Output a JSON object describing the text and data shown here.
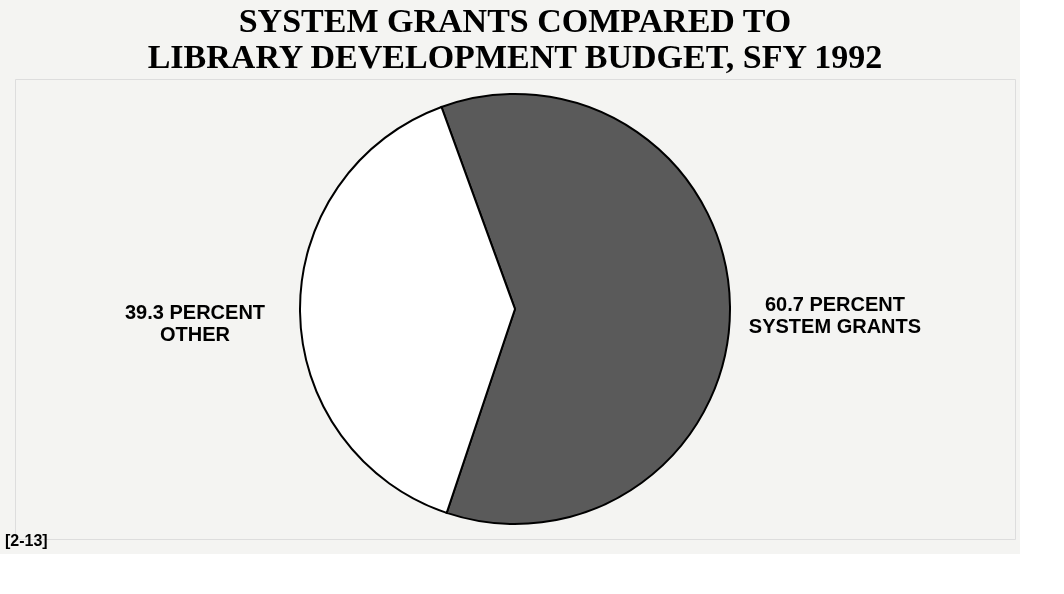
{
  "chart_data": {
    "type": "pie",
    "title": [
      "SYSTEM GRANTS COMPARED TO",
      "LIBRARY DEVELOPMENT BUDGET, SFY 1992"
    ],
    "categories": [
      "SYSTEM GRANTS",
      "OTHER"
    ],
    "values": [
      60.7,
      39.3
    ],
    "colors": [
      "#5a5a5a",
      "#ffffff"
    ],
    "value_labels": [
      "60.7 PERCENT",
      "39.3 PERCENT"
    ],
    "legend": false,
    "annotations": [
      "[2-13]"
    ]
  }
}
